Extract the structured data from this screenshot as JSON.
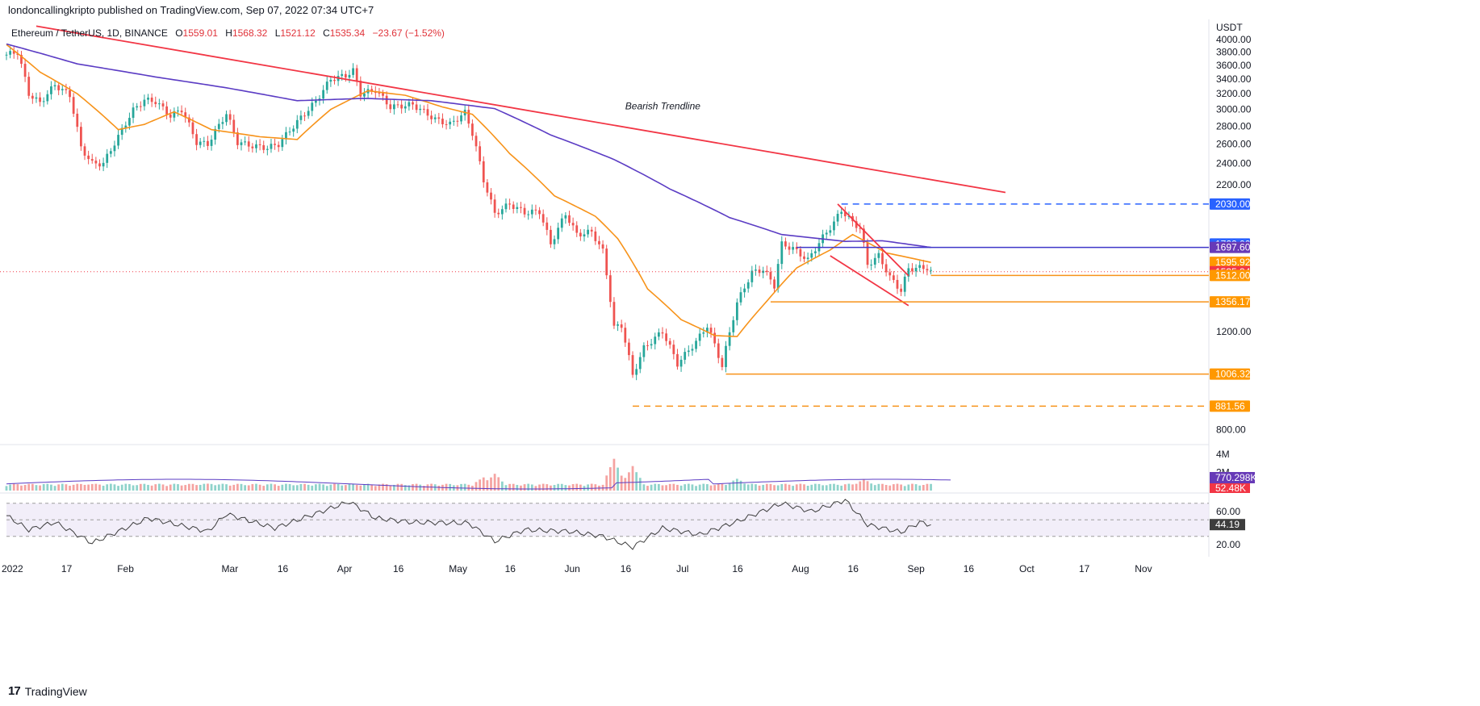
{
  "header": {
    "published_text": "londoncallingkripto published on TradingView.com, Sep 07, 2022 07:34 UTC+7"
  },
  "legend": {
    "symbol": "Ethereum / TetherUS, 1D, BINANCE",
    "open_label": "O",
    "open": "1559.01",
    "high_label": "H",
    "high": "1568.32",
    "low_label": "L",
    "low": "1521.12",
    "close_label": "C",
    "close": "1535.34",
    "change": "−23.67 (−1.52%)"
  },
  "brand": {
    "name": "TradingView",
    "logo": "17"
  },
  "chart_data": {
    "type": "candlestick",
    "currency_label": "USDT",
    "y_scale": "log",
    "y_range": [
      760,
      4250
    ],
    "y_ticks": [
      "4000.00",
      "3800.00",
      "3600.00",
      "3400.00",
      "3200.00",
      "3000.00",
      "2800.00",
      "2600.00",
      "2400.00",
      "2200.00",
      "1200.00",
      "800.00"
    ],
    "x_ticks": [
      "2022",
      "17",
      "Feb",
      "Mar",
      "16",
      "Apr",
      "16",
      "May",
      "16",
      "Jun",
      "16",
      "Jul",
      "16",
      "Aug",
      "16",
      "Sep",
      "16",
      "Oct",
      "17",
      "Nov"
    ],
    "x_tick_dates": [
      "2022-01-01",
      "2022-01-17",
      "2022-02-01",
      "2022-03-01",
      "2022-03-16",
      "2022-04-01",
      "2022-04-16",
      "2022-05-01",
      "2022-05-16",
      "2022-06-01",
      "2022-06-16",
      "2022-07-01",
      "2022-07-16",
      "2022-08-01",
      "2022-08-16",
      "2022-09-01",
      "2022-09-16",
      "2022-10-01",
      "2022-10-17",
      "2022-11-01"
    ],
    "date_range": [
      "2022-01-01",
      "2022-11-20"
    ],
    "close_key_points": [
      [
        "2022-01-01",
        3760
      ],
      [
        "2022-01-04",
        3800
      ],
      [
        "2022-01-07",
        3200
      ],
      [
        "2022-01-10",
        3080
      ],
      [
        "2022-01-14",
        3320
      ],
      [
        "2022-01-18",
        3180
      ],
      [
        "2022-01-21",
        2560
      ],
      [
        "2022-01-24",
        2400
      ],
      [
        "2022-01-27",
        2400
      ],
      [
        "2022-01-31",
        2680
      ],
      [
        "2022-02-04",
        2990
      ],
      [
        "2022-02-07",
        3120
      ],
      [
        "2022-02-10",
        3100
      ],
      [
        "2022-02-14",
        2920
      ],
      [
        "2022-02-17",
        3000
      ],
      [
        "2022-02-21",
        2620
      ],
      [
        "2022-02-24",
        2600
      ],
      [
        "2022-03-01",
        2950
      ],
      [
        "2022-03-04",
        2620
      ],
      [
        "2022-03-08",
        2580
      ],
      [
        "2022-03-12",
        2560
      ],
      [
        "2022-03-15",
        2600
      ],
      [
        "2022-03-21",
        2900
      ],
      [
        "2022-03-25",
        3100
      ],
      [
        "2022-03-29",
        3400
      ],
      [
        "2022-04-02",
        3450
      ],
      [
        "2022-04-04",
        3520
      ],
      [
        "2022-04-06",
        3200
      ],
      [
        "2022-04-10",
        3250
      ],
      [
        "2022-04-14",
        3030
      ],
      [
        "2022-04-20",
        3060
      ],
      [
        "2022-04-26",
        2880
      ],
      [
        "2022-04-30",
        2820
      ],
      [
        "2022-05-04",
        2960
      ],
      [
        "2022-05-06",
        2720
      ],
      [
        "2022-05-09",
        2240
      ],
      [
        "2022-05-12",
        1950
      ],
      [
        "2022-05-16",
        2030
      ],
      [
        "2022-05-20",
        1960
      ],
      [
        "2022-05-24",
        1970
      ],
      [
        "2022-05-27",
        1720
      ],
      [
        "2022-05-31",
        1950
      ],
      [
        "2022-06-03",
        1790
      ],
      [
        "2022-06-07",
        1810
      ],
      [
        "2022-06-10",
        1670
      ],
      [
        "2022-06-13",
        1220
      ],
      [
        "2022-06-15",
        1230
      ],
      [
        "2022-06-18",
        1000
      ],
      [
        "2022-06-21",
        1120
      ],
      [
        "2022-06-26",
        1200
      ],
      [
        "2022-06-30",
        1050
      ],
      [
        "2022-07-05",
        1150
      ],
      [
        "2022-07-08",
        1230
      ],
      [
        "2022-07-12",
        1040
      ],
      [
        "2022-07-16",
        1350
      ],
      [
        "2022-07-20",
        1530
      ],
      [
        "2022-07-23",
        1550
      ],
      [
        "2022-07-26",
        1450
      ],
      [
        "2022-07-28",
        1720
      ],
      [
        "2022-07-31",
        1690
      ],
      [
        "2022-08-04",
        1610
      ],
      [
        "2022-08-08",
        1770
      ],
      [
        "2022-08-11",
        1880
      ],
      [
        "2022-08-13",
        1980
      ],
      [
        "2022-08-16",
        1880
      ],
      [
        "2022-08-18",
        1840
      ],
      [
        "2022-08-20",
        1580
      ],
      [
        "2022-08-23",
        1640
      ],
      [
        "2022-08-26",
        1500
      ],
      [
        "2022-08-29",
        1420
      ],
      [
        "2022-08-31",
        1555
      ],
      [
        "2022-09-03",
        1560
      ],
      [
        "2022-09-05",
        1560
      ],
      [
        "2022-09-06",
        1535.34
      ]
    ],
    "ema_20_key_points": [
      [
        "2022-01-01",
        3920
      ],
      [
        "2022-01-10",
        3500
      ],
      [
        "2022-01-20",
        3200
      ],
      [
        "2022-01-31",
        2760
      ],
      [
        "2022-02-07",
        2820
      ],
      [
        "2022-02-15",
        2970
      ],
      [
        "2022-02-25",
        2760
      ],
      [
        "2022-03-10",
        2680
      ],
      [
        "2022-03-20",
        2650
      ],
      [
        "2022-03-29",
        3000
      ],
      [
        "2022-04-08",
        3240
      ],
      [
        "2022-04-18",
        3180
      ],
      [
        "2022-04-28",
        3030
      ],
      [
        "2022-05-06",
        2940
      ],
      [
        "2022-05-16",
        2500
      ],
      [
        "2022-05-28",
        2100
      ],
      [
        "2022-06-08",
        1930
      ],
      [
        "2022-06-14",
        1760
      ],
      [
        "2022-06-22",
        1430
      ],
      [
        "2022-07-01",
        1260
      ],
      [
        "2022-07-10",
        1180
      ],
      [
        "2022-07-16",
        1175
      ],
      [
        "2022-07-24",
        1360
      ],
      [
        "2022-08-01",
        1560
      ],
      [
        "2022-08-10",
        1680
      ],
      [
        "2022-08-16",
        1790
      ],
      [
        "2022-08-25",
        1660
      ],
      [
        "2022-09-06",
        1595.92
      ]
    ],
    "ema_100_key_points": [
      [
        "2022-01-01",
        3930
      ],
      [
        "2022-01-20",
        3620
      ],
      [
        "2022-02-10",
        3430
      ],
      [
        "2022-03-01",
        3280
      ],
      [
        "2022-03-20",
        3110
      ],
      [
        "2022-04-07",
        3140
      ],
      [
        "2022-04-25",
        3110
      ],
      [
        "2022-05-12",
        3010
      ],
      [
        "2022-05-27",
        2700
      ],
      [
        "2022-06-13",
        2440
      ],
      [
        "2022-06-28",
        2160
      ],
      [
        "2022-07-14",
        1920
      ],
      [
        "2022-07-28",
        1790
      ],
      [
        "2022-08-14",
        1740
      ],
      [
        "2022-08-24",
        1745
      ],
      [
        "2022-09-06",
        1697.6
      ]
    ],
    "lines": [
      {
        "kind": "trendline",
        "start": [
          "2022-01-09",
          4230
        ],
        "end": [
          "2022-09-26",
          2130
        ]
      },
      {
        "kind": "wedge-upper",
        "start": [
          "2022-08-12",
          2030
        ],
        "end": [
          "2022-08-31",
          1510
        ]
      },
      {
        "kind": "wedge-lower",
        "start": [
          "2022-08-10",
          1640
        ],
        "end": [
          "2022-08-31",
          1335
        ]
      },
      {
        "kind": "dashed-resistance",
        "start": [
          "2022-08-13",
          2030
        ],
        "level": 2030
      },
      {
        "kind": "resistance",
        "start": [
          "2022-08-01",
          1697.6
        ],
        "level": 1697.6
      },
      {
        "kind": "support",
        "start": [
          "2022-09-06",
          1512
        ],
        "level": 1512
      },
      {
        "kind": "support",
        "start": [
          "2022-07-25",
          1356.17
        ],
        "level": 1356.17
      },
      {
        "kind": "support",
        "start": [
          "2022-07-13",
          1006.32
        ],
        "level": 1006.32
      },
      {
        "kind": "dashed-support",
        "start": [
          "2022-06-18",
          881.56
        ],
        "level": 881.56
      }
    ],
    "annotation": {
      "text": "Bearish Trendline",
      "date": "2022-06-16",
      "price": 3000
    },
    "price_tags": [
      {
        "label": "2030.00",
        "price": 2030,
        "color": "#2962ff"
      },
      {
        "label": "1722.00",
        "price": 1722,
        "color": "#2962ff"
      },
      {
        "label": "1697.60",
        "price": 1697.6,
        "color": "#673ab7"
      },
      {
        "label": "1595.92",
        "price": 1595.92,
        "color": "#ff9800"
      },
      {
        "label": "1535.34",
        "price": 1535.34,
        "color": "#f23645"
      },
      {
        "label": "1512.00",
        "price": 1512,
        "color": "#ff9800"
      },
      {
        "label": "1356.17",
        "price": 1356.17,
        "color": "#ff9800"
      },
      {
        "label": "1006.32",
        "price": 1006.32,
        "color": "#ff9800"
      },
      {
        "label": "881.56",
        "price": 881.56,
        "color": "#ff9800"
      }
    ],
    "volume": {
      "ticks": [
        "4M",
        "2M"
      ],
      "max": 4000000,
      "ma_label": "770.298K",
      "last_label": "52.48K",
      "spike_points": [
        [
          "2022-01-24",
          700000
        ],
        [
          "2022-02-24",
          760000
        ],
        [
          "2022-05-09",
          1450000
        ],
        [
          "2022-05-12",
          1850000
        ],
        [
          "2022-06-13",
          3500000
        ],
        [
          "2022-06-18",
          2700000
        ],
        [
          "2022-07-16",
          1300000
        ],
        [
          "2022-08-19",
          1200000
        ]
      ]
    },
    "rsi": {
      "ticks": [
        "60.00",
        "20.00"
      ],
      "band": [
        30,
        70
      ],
      "value_label": "44.19",
      "key_points": [
        [
          "2022-01-01",
          55
        ],
        [
          "2022-01-07",
          38
        ],
        [
          "2022-01-14",
          47
        ],
        [
          "2022-01-24",
          22
        ],
        [
          "2022-02-08",
          52
        ],
        [
          "2022-02-24",
          36
        ],
        [
          "2022-03-01",
          57
        ],
        [
          "2022-03-14",
          40
        ],
        [
          "2022-04-03",
          72
        ],
        [
          "2022-04-10",
          52
        ],
        [
          "2022-04-20",
          47
        ],
        [
          "2022-05-05",
          46
        ],
        [
          "2022-05-12",
          24
        ],
        [
          "2022-05-20",
          38
        ],
        [
          "2022-06-01",
          36
        ],
        [
          "2022-06-10",
          30
        ],
        [
          "2022-06-18",
          17
        ],
        [
          "2022-06-26",
          40
        ],
        [
          "2022-07-06",
          32
        ],
        [
          "2022-07-16",
          48
        ],
        [
          "2022-07-28",
          70
        ],
        [
          "2022-08-05",
          60
        ],
        [
          "2022-08-14",
          74
        ],
        [
          "2022-08-20",
          44
        ],
        [
          "2022-08-29",
          35
        ],
        [
          "2022-09-03",
          47
        ],
        [
          "2022-09-06",
          44.19
        ]
      ]
    }
  }
}
